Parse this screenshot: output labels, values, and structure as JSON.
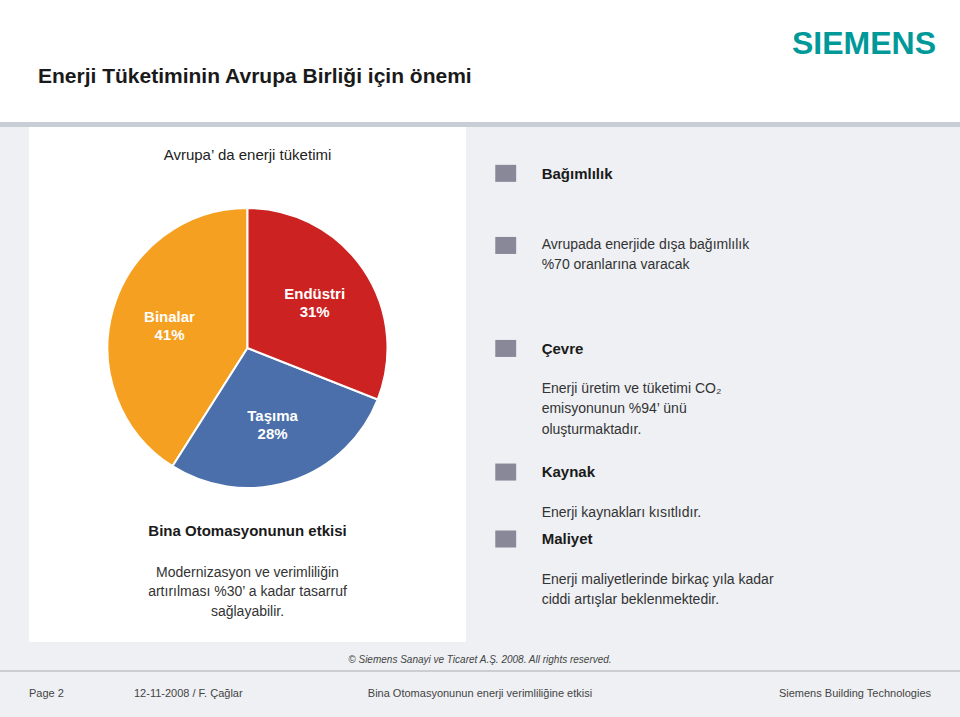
{
  "title": "Enerji Tüketiminin Avrupa Birliği için önemi",
  "logo": {
    "text": "SIEMENS",
    "color": "#009999"
  },
  "chart_data": {
    "type": "pie",
    "title": "Avrupa’ da enerji tüketimi",
    "categories": [
      "Binalar",
      "Taşıma",
      "Endüstri"
    ],
    "values": [
      41,
      28,
      31
    ],
    "value_labels": [
      "41%",
      "28%",
      "31%"
    ],
    "data_labels": true,
    "colors": [
      "#f5a020",
      "#4a6faa",
      "#cc2222"
    ],
    "annotations": [
      {
        "title": "Bina Otomasyonunun etkisi",
        "text": "Modernizasyon ve verimliliğin\nartırılması %30’ a kadar tasarruf\nsağlayabilir."
      }
    ]
  },
  "bullets": {
    "color": "#888899",
    "items": [
      {
        "title": "Bağımlılık"
      },
      {
        "text": "Avrupada enerjide dışa bağımlılık\n%70 oranlarına varacak"
      },
      {
        "title": "Çevre",
        "text": "Enerji üretim ve tüketimi CO₂\nemisyonunun %94’ ünü\noluşturmaktadır."
      },
      {
        "title": "Kaynak",
        "text": "Enerji kaynakları kısıtlıdır."
      },
      {
        "title": "Maliyet",
        "text": "Enerji maliyetlerinde birkaç yıla kadar\nciddi artışlar beklenmektedir."
      }
    ]
  },
  "footer": [
    "© Siemens Sanayi ve Ticaret A.Ş. 2008. All rights reserved.",
    "Page 2",
    "12-11-2008 / F. Çağlar",
    "Bina Otomasyonunun enerji verimliliğine etkisi",
    "Siemens Building Technologies"
  ]
}
